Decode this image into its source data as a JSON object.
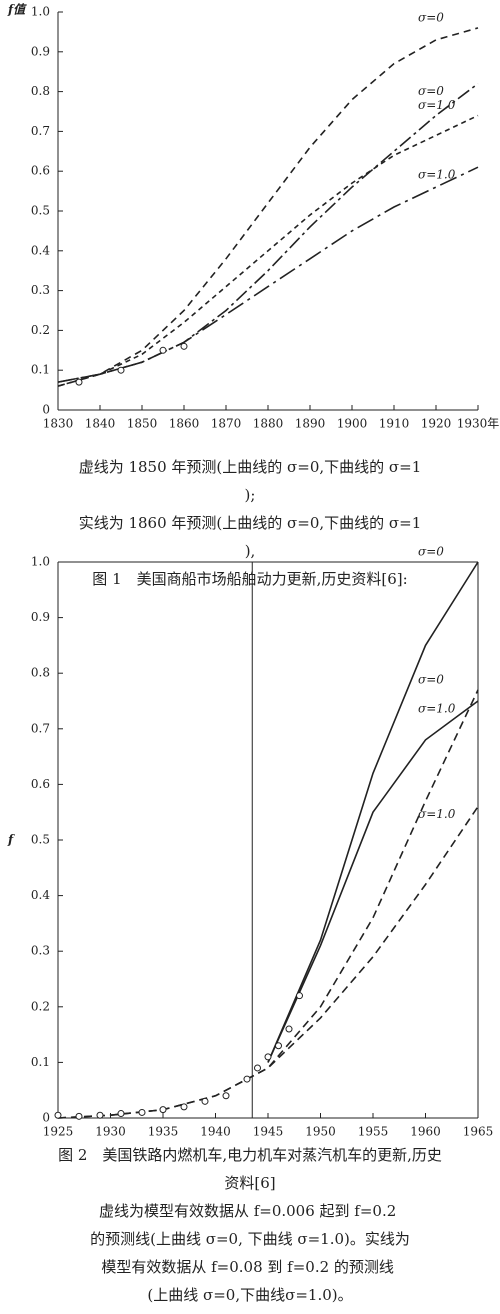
{
  "chart_data": [
    {
      "type": "line",
      "ylabel": "f值",
      "xlim": [
        1830,
        1930
      ],
      "xticks": [
        1830,
        1840,
        1850,
        1860,
        1870,
        1880,
        1890,
        1900,
        1910,
        1920,
        {
          "value": 1930,
          "label": "1930年"
        }
      ],
      "ylim": [
        0,
        1
      ],
      "yticks": [
        0,
        0.1,
        0.2,
        0.3,
        0.4,
        0.5,
        0.6,
        0.7,
        0.8,
        0.9,
        {
          "value": 1,
          "label": "1.0"
        }
      ],
      "x": [
        1830,
        1840,
        1850,
        1860,
        1870,
        1880,
        1890,
        1900,
        1910,
        1920,
        1930
      ],
      "series": [
        {
          "name": "σ=0",
          "color": "#222",
          "dash": "7,5",
          "values": [
            0.06,
            0.09,
            0.15,
            0.25,
            0.38,
            0.52,
            0.66,
            0.78,
            0.87,
            0.93,
            0.96
          ]
        },
        {
          "name": "σ=0",
          "color": "#222",
          "dash": "14,4,3,4",
          "values": [
            0.07,
            0.09,
            0.12,
            0.17,
            0.25,
            0.35,
            0.46,
            0.56,
            0.65,
            0.74,
            0.82
          ]
        },
        {
          "name": "σ=1.0",
          "color": "#222",
          "dash": "5,4",
          "values": [
            0.06,
            0.09,
            0.14,
            0.22,
            0.31,
            0.4,
            0.49,
            0.57,
            0.64,
            0.69,
            0.74
          ]
        },
        {
          "name": "σ=1.0",
          "color": "#222",
          "dash": "18,5,3,5",
          "values": [
            0.07,
            0.09,
            0.12,
            0.17,
            0.24,
            0.31,
            0.38,
            0.45,
            0.51,
            0.56,
            0.61
          ]
        }
      ],
      "points": {
        "x": [
          1835,
          1845,
          1855,
          1860
        ],
        "values": [
          0.07,
          0.1,
          0.15,
          0.16
        ]
      },
      "caption": [
        "虚线为 1850 年预测(上曲线的 σ=0,下曲线的 σ=1);",
        "实线为 1860 年预测(上曲线的 σ=0,下曲线的 σ=1),",
        "图 1　美国商船市场船舶动力更新,历史资料[6]:"
      ]
    },
    {
      "type": "line",
      "ylabel": "f",
      "xlim": [
        1925,
        1965
      ],
      "xticks": [
        1925,
        1930,
        1935,
        1940,
        1945,
        1950,
        1955,
        1960,
        1965
      ],
      "ylim": [
        0,
        1
      ],
      "yticks": [
        0,
        0.1,
        0.2,
        0.3,
        0.4,
        0.5,
        0.6,
        0.7,
        0.8,
        0.9,
        {
          "value": 1,
          "label": "1.0"
        }
      ],
      "vline": 1943.5,
      "x": [
        1925,
        1930,
        1935,
        1940,
        1945,
        1950,
        1955,
        1960,
        1965
      ],
      "series": [
        {
          "name": "σ=0",
          "color": "#222",
          "dash": "",
          "values": [
            null,
            null,
            null,
            null,
            0.1,
            0.32,
            0.62,
            0.85,
            1
          ]
        },
        {
          "name": "σ=1.0",
          "color": "#222",
          "dash": "",
          "values": [
            null,
            null,
            null,
            null,
            0.1,
            0.31,
            0.55,
            0.68,
            0.75
          ]
        },
        {
          "name": "σ=0",
          "color": "#222",
          "dash": "8,5",
          "values": [
            0,
            0.005,
            0.015,
            0.04,
            0.09,
            0.2,
            0.36,
            0.57,
            0.77
          ]
        },
        {
          "name": "σ=1.0",
          "color": "#222",
          "dash": "8,5",
          "values": [
            0,
            0.005,
            0.015,
            0.04,
            0.09,
            0.18,
            0.29,
            0.42,
            0.56
          ]
        }
      ],
      "points": {
        "x": [
          1925,
          1927,
          1929,
          1931,
          1933,
          1935,
          1937,
          1939,
          1941,
          1943,
          1944,
          1945,
          1946,
          1947,
          1948
        ],
        "values": [
          0.005,
          0.003,
          0.005,
          0.008,
          0.01,
          0.015,
          0.02,
          0.03,
          0.04,
          0.07,
          0.09,
          0.11,
          0.13,
          0.16,
          0.22
        ]
      },
      "caption": [
        "图 2　美国铁路内燃机车,电力机车对蒸汽机车的更新,历史资料[6]",
        "虚线为模型有效数据从 f=0.006 起到 f=0.2 的预测线(上曲线 σ=0, 下曲线 σ=1.0)。实线为模型有效数据从 f=0.08 到 f=0.2 的预测线 (上曲线 σ=0,下曲线σ=1.0)。"
      ]
    }
  ]
}
